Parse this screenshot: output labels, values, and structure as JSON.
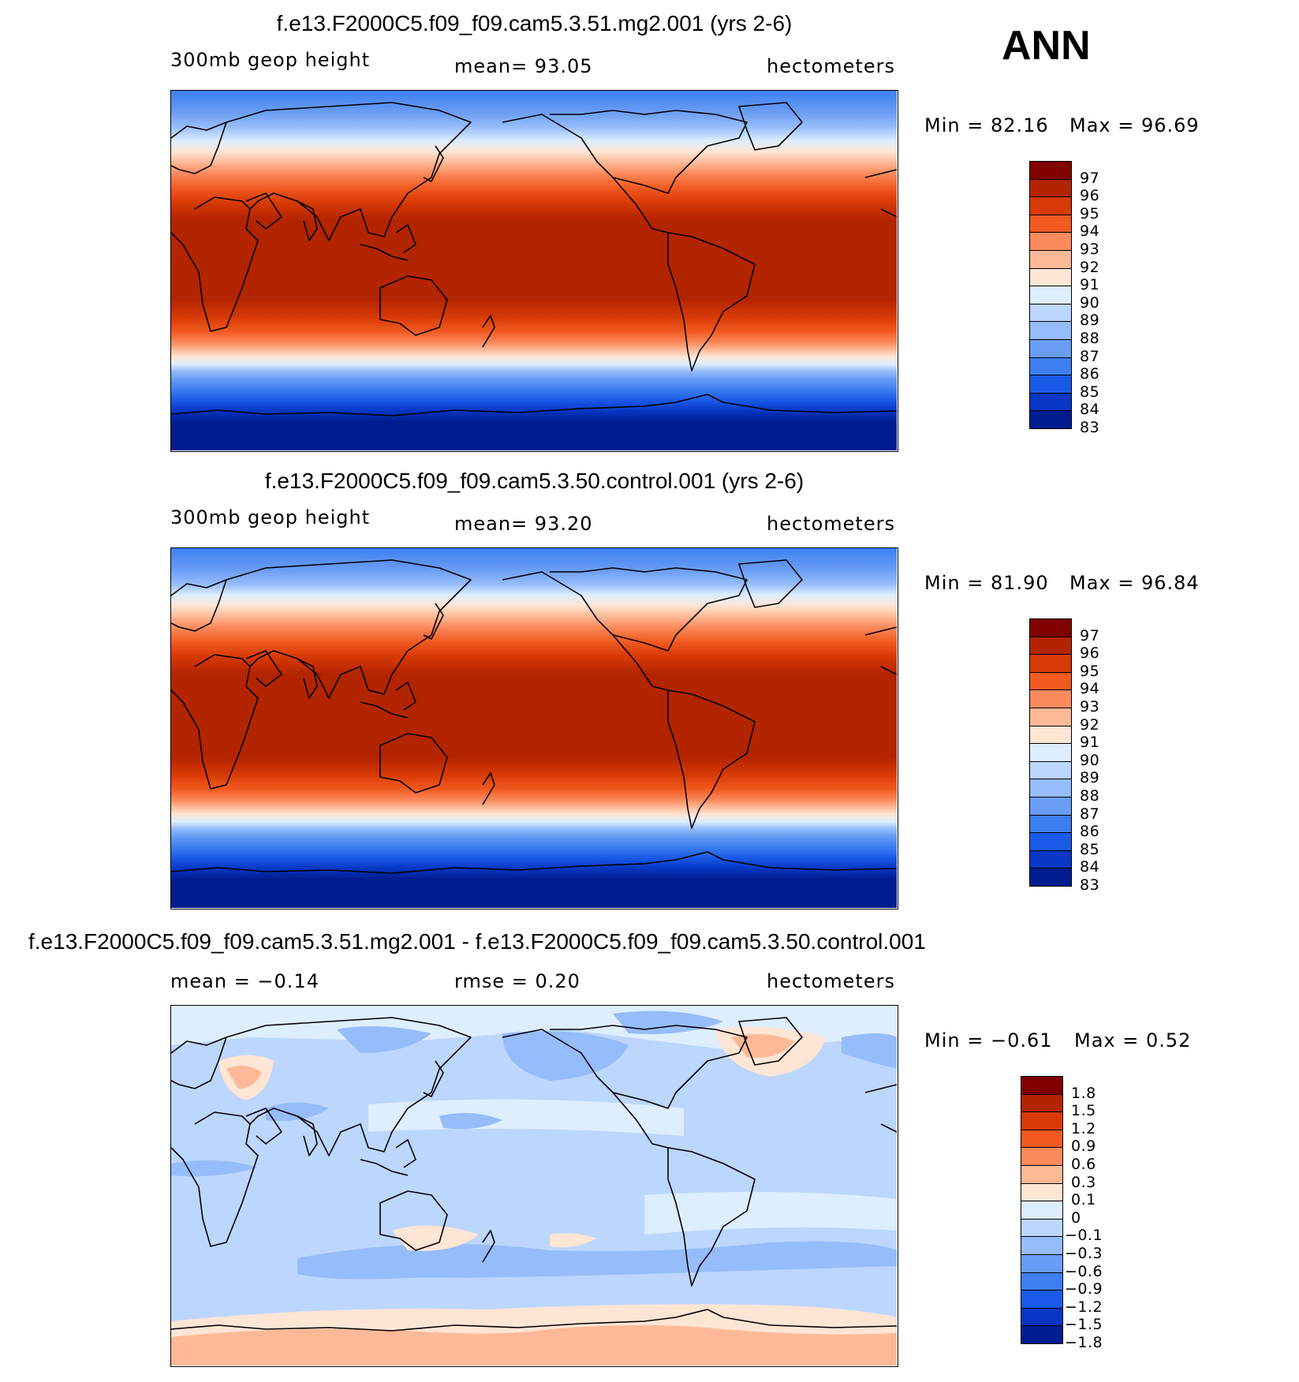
{
  "season": "ANN",
  "land_color": "#000000",
  "panels": [
    {
      "id": "test",
      "title": "f.e13.F2000C5.f09_f09.cam5.3.51.mg2.001 (yrs 2-6)",
      "variable": "300mb geop height",
      "stat_text": "mean=   93.05",
      "units": "hectometers",
      "min_text": "Min =   82.16",
      "max_text": "Max =   96.69",
      "colorbar": {
        "colors": [
          "#800000",
          "#b32400",
          "#d83a06",
          "#f25a21",
          "#fb8a5c",
          "#fdb997",
          "#fee5d4",
          "#ddeeff",
          "#bcd6fd",
          "#96bcfb",
          "#6a9df5",
          "#3d7ff0",
          "#1a5ae8",
          "#0737c4",
          "#001d8f"
        ],
        "labels": [
          "97",
          "96",
          "95",
          "94",
          "93",
          "92",
          "91",
          "90",
          "89",
          "88",
          "87",
          "86",
          "85",
          "84",
          "83"
        ]
      }
    },
    {
      "id": "control",
      "title": "f.e13.F2000C5.f09_f09.cam5.3.50.control.001 (yrs 2-6)",
      "variable": "300mb geop height",
      "stat_text": "mean=   93.20",
      "units": "hectometers",
      "min_text": "Min =   81.90",
      "max_text": "Max =   96.84",
      "colorbar": {
        "colors": [
          "#800000",
          "#b32400",
          "#d83a06",
          "#f25a21",
          "#fb8a5c",
          "#fdb997",
          "#fee5d4",
          "#ddeeff",
          "#bcd6fd",
          "#96bcfb",
          "#6a9df5",
          "#3d7ff0",
          "#1a5ae8",
          "#0737c4",
          "#001d8f"
        ],
        "labels": [
          "97",
          "96",
          "95",
          "94",
          "93",
          "92",
          "91",
          "90",
          "89",
          "88",
          "87",
          "86",
          "85",
          "84",
          "83"
        ]
      }
    },
    {
      "id": "diff",
      "title": "f.e13.F2000C5.f09_f09.cam5.3.51.mg2.001 - f.e13.F2000C5.f09_f09.cam5.3.50.control.001",
      "variable": "mean =   −0.14",
      "stat_text": "rmse =    0.20",
      "units": "hectometers",
      "min_text": "Min =  −0.61",
      "max_text": "Max =    0.52",
      "colorbar": {
        "colors": [
          "#800000",
          "#b32400",
          "#d83a06",
          "#f25a21",
          "#fb8a5c",
          "#fdb997",
          "#fee5d4",
          "#ddeeff",
          "#bcd6fd",
          "#96bcfb",
          "#6a9df5",
          "#3d7ff0",
          "#1a5ae8",
          "#0737c4",
          "#001d8f"
        ],
        "labels": [
          "1.8",
          "1.5",
          "1.2",
          "0.9",
          "0.6",
          "0.3",
          "0.1",
          "0",
          "−0.1",
          "−0.3",
          "−0.6",
          "−0.9",
          "−1.2",
          "−1.5",
          "−1.8"
        ]
      }
    }
  ]
}
